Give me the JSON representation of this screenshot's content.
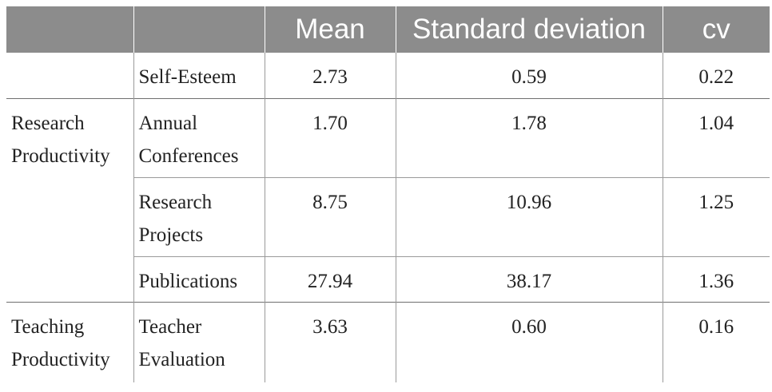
{
  "table": {
    "headers": [
      "",
      "",
      "Mean",
      "Standard deviation",
      "cv"
    ],
    "rows": [
      {
        "group": "",
        "measure": "Self-Esteem",
        "mean": "2.73",
        "sd": "0.59",
        "cv": "0.22"
      },
      {
        "group": "Research Productivity",
        "measure": "Annual Conferences",
        "mean": "1.70",
        "sd": "1.78",
        "cv": "1.04"
      },
      {
        "measure": "Research Projects",
        "mean": "8.75",
        "sd": "10.96",
        "cv": "1.25"
      },
      {
        "measure": "Publications",
        "mean": "27.94",
        "sd": "38.17",
        "cv": "1.36"
      },
      {
        "group": "Teaching Productivity",
        "measure": "Teacher Evaluation",
        "mean": "3.63",
        "sd": "0.60",
        "cv": "0.16"
      }
    ]
  }
}
